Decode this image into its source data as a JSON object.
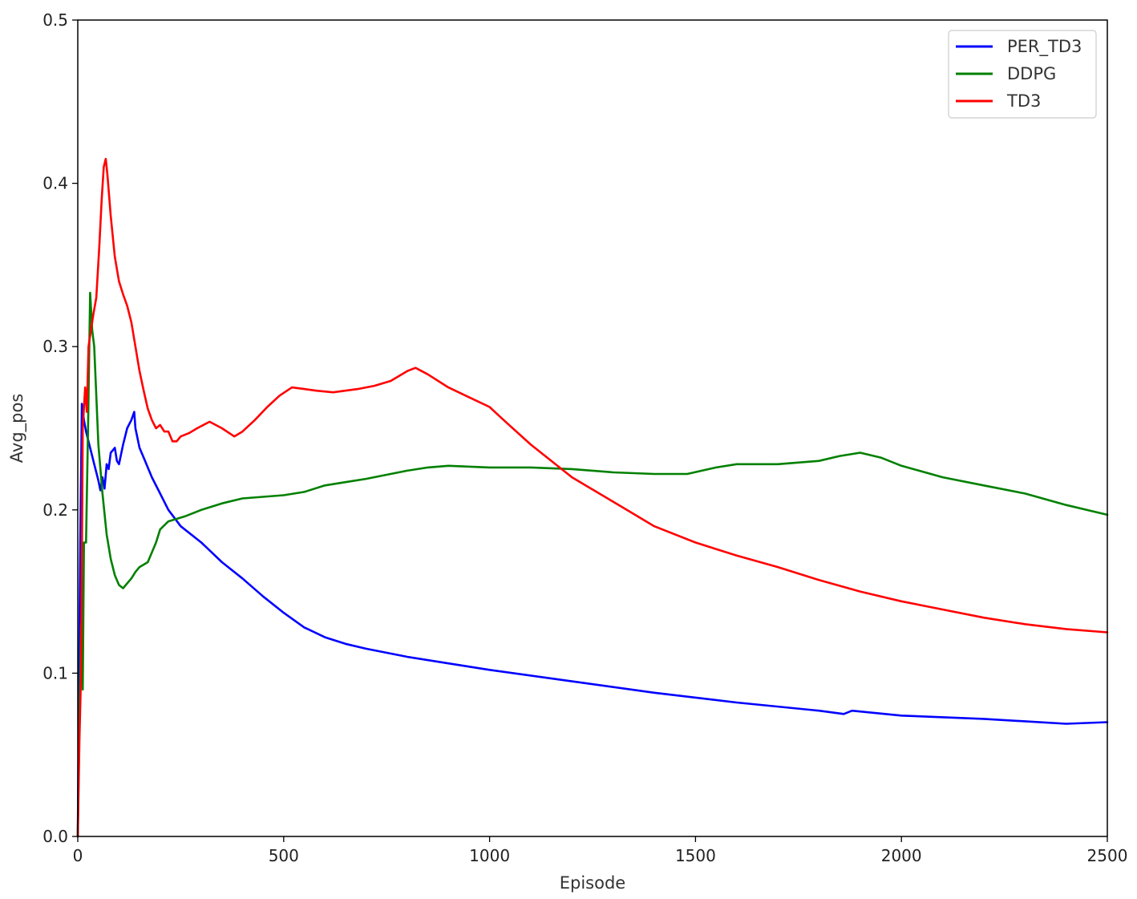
{
  "chart_data": {
    "type": "line",
    "title": "",
    "xlabel": "Episode",
    "ylabel": "Avg_pos",
    "xlim": [
      0,
      2500
    ],
    "ylim": [
      0.0,
      0.5
    ],
    "xticks": [
      0,
      500,
      1000,
      1500,
      2000,
      2500
    ],
    "yticks": [
      0.0,
      0.1,
      0.2,
      0.3,
      0.4,
      0.5
    ],
    "xtick_labels": [
      "0",
      "500",
      "1000",
      "1500",
      "2000",
      "2500"
    ],
    "ytick_labels": [
      "0.0",
      "0.1",
      "0.2",
      "0.3",
      "0.4",
      "0.5"
    ],
    "grid": false,
    "legend_position": "top-right",
    "series": [
      {
        "name": "PER_TD3",
        "color": "#0000ff",
        "points": [
          [
            0,
            0.0
          ],
          [
            3,
            0.09
          ],
          [
            6,
            0.18
          ],
          [
            10,
            0.265
          ],
          [
            15,
            0.255
          ],
          [
            20,
            0.248
          ],
          [
            30,
            0.238
          ],
          [
            40,
            0.228
          ],
          [
            50,
            0.218
          ],
          [
            55,
            0.212
          ],
          [
            60,
            0.22
          ],
          [
            65,
            0.213
          ],
          [
            70,
            0.228
          ],
          [
            75,
            0.225
          ],
          [
            80,
            0.235
          ],
          [
            90,
            0.238
          ],
          [
            95,
            0.23
          ],
          [
            100,
            0.228
          ],
          [
            110,
            0.24
          ],
          [
            120,
            0.25
          ],
          [
            130,
            0.255
          ],
          [
            137,
            0.26
          ],
          [
            140,
            0.25
          ],
          [
            150,
            0.238
          ],
          [
            160,
            0.232
          ],
          [
            180,
            0.22
          ],
          [
            200,
            0.21
          ],
          [
            220,
            0.2
          ],
          [
            250,
            0.19
          ],
          [
            300,
            0.18
          ],
          [
            350,
            0.168
          ],
          [
            400,
            0.158
          ],
          [
            450,
            0.147
          ],
          [
            500,
            0.137
          ],
          [
            550,
            0.128
          ],
          [
            600,
            0.122
          ],
          [
            650,
            0.118
          ],
          [
            700,
            0.115
          ],
          [
            800,
            0.11
          ],
          [
            900,
            0.106
          ],
          [
            1000,
            0.102
          ],
          [
            1200,
            0.095
          ],
          [
            1400,
            0.088
          ],
          [
            1600,
            0.082
          ],
          [
            1800,
            0.077
          ],
          [
            1860,
            0.075
          ],
          [
            1880,
            0.077
          ],
          [
            2000,
            0.074
          ],
          [
            2200,
            0.072
          ],
          [
            2400,
            0.069
          ],
          [
            2500,
            0.07
          ]
        ]
      },
      {
        "name": "DDPG",
        "color": "#008000",
        "points": [
          [
            0,
            0.0
          ],
          [
            5,
            0.09
          ],
          [
            8,
            0.13
          ],
          [
            12,
            0.09
          ],
          [
            15,
            0.18
          ],
          [
            20,
            0.18
          ],
          [
            25,
            0.25
          ],
          [
            30,
            0.333
          ],
          [
            35,
            0.31
          ],
          [
            40,
            0.3
          ],
          [
            45,
            0.27
          ],
          [
            50,
            0.24
          ],
          [
            60,
            0.21
          ],
          [
            70,
            0.185
          ],
          [
            80,
            0.17
          ],
          [
            90,
            0.16
          ],
          [
            100,
            0.154
          ],
          [
            110,
            0.152
          ],
          [
            120,
            0.155
          ],
          [
            130,
            0.158
          ],
          [
            140,
            0.162
          ],
          [
            150,
            0.165
          ],
          [
            170,
            0.168
          ],
          [
            190,
            0.18
          ],
          [
            200,
            0.188
          ],
          [
            220,
            0.193
          ],
          [
            260,
            0.196
          ],
          [
            300,
            0.2
          ],
          [
            350,
            0.204
          ],
          [
            400,
            0.207
          ],
          [
            450,
            0.208
          ],
          [
            500,
            0.209
          ],
          [
            550,
            0.211
          ],
          [
            600,
            0.215
          ],
          [
            650,
            0.217
          ],
          [
            700,
            0.219
          ],
          [
            800,
            0.224
          ],
          [
            850,
            0.226
          ],
          [
            900,
            0.227
          ],
          [
            1000,
            0.226
          ],
          [
            1100,
            0.226
          ],
          [
            1200,
            0.225
          ],
          [
            1300,
            0.223
          ],
          [
            1400,
            0.222
          ],
          [
            1480,
            0.222
          ],
          [
            1550,
            0.226
          ],
          [
            1600,
            0.228
          ],
          [
            1700,
            0.228
          ],
          [
            1800,
            0.23
          ],
          [
            1850,
            0.233
          ],
          [
            1900,
            0.235
          ],
          [
            1950,
            0.232
          ],
          [
            2000,
            0.227
          ],
          [
            2100,
            0.22
          ],
          [
            2200,
            0.215
          ],
          [
            2300,
            0.21
          ],
          [
            2400,
            0.203
          ],
          [
            2500,
            0.197
          ]
        ]
      },
      {
        "name": "TD3",
        "color": "#ff0000",
        "points": [
          [
            0,
            0.0
          ],
          [
            4,
            0.06
          ],
          [
            8,
            0.1
          ],
          [
            12,
            0.25
          ],
          [
            18,
            0.275
          ],
          [
            22,
            0.26
          ],
          [
            26,
            0.3
          ],
          [
            32,
            0.31
          ],
          [
            38,
            0.32
          ],
          [
            45,
            0.33
          ],
          [
            52,
            0.36
          ],
          [
            58,
            0.39
          ],
          [
            63,
            0.41
          ],
          [
            68,
            0.415
          ],
          [
            72,
            0.405
          ],
          [
            80,
            0.38
          ],
          [
            90,
            0.355
          ],
          [
            100,
            0.34
          ],
          [
            110,
            0.332
          ],
          [
            120,
            0.325
          ],
          [
            130,
            0.315
          ],
          [
            140,
            0.3
          ],
          [
            150,
            0.285
          ],
          [
            160,
            0.273
          ],
          [
            170,
            0.262
          ],
          [
            180,
            0.255
          ],
          [
            190,
            0.25
          ],
          [
            200,
            0.252
          ],
          [
            210,
            0.248
          ],
          [
            220,
            0.248
          ],
          [
            230,
            0.242
          ],
          [
            240,
            0.242
          ],
          [
            250,
            0.245
          ],
          [
            270,
            0.247
          ],
          [
            290,
            0.25
          ],
          [
            320,
            0.254
          ],
          [
            350,
            0.25
          ],
          [
            380,
            0.245
          ],
          [
            400,
            0.248
          ],
          [
            430,
            0.255
          ],
          [
            460,
            0.263
          ],
          [
            490,
            0.27
          ],
          [
            520,
            0.275
          ],
          [
            550,
            0.274
          ],
          [
            580,
            0.273
          ],
          [
            620,
            0.272
          ],
          [
            680,
            0.274
          ],
          [
            720,
            0.276
          ],
          [
            760,
            0.279
          ],
          [
            800,
            0.285
          ],
          [
            820,
            0.287
          ],
          [
            850,
            0.283
          ],
          [
            900,
            0.275
          ],
          [
            950,
            0.269
          ],
          [
            1000,
            0.263
          ],
          [
            1030,
            0.256
          ],
          [
            1100,
            0.24
          ],
          [
            1200,
            0.22
          ],
          [
            1300,
            0.205
          ],
          [
            1400,
            0.19
          ],
          [
            1500,
            0.18
          ],
          [
            1600,
            0.172
          ],
          [
            1700,
            0.165
          ],
          [
            1800,
            0.157
          ],
          [
            1900,
            0.15
          ],
          [
            2000,
            0.144
          ],
          [
            2100,
            0.139
          ],
          [
            2200,
            0.134
          ],
          [
            2300,
            0.13
          ],
          [
            2400,
            0.127
          ],
          [
            2500,
            0.125
          ]
        ]
      }
    ]
  }
}
